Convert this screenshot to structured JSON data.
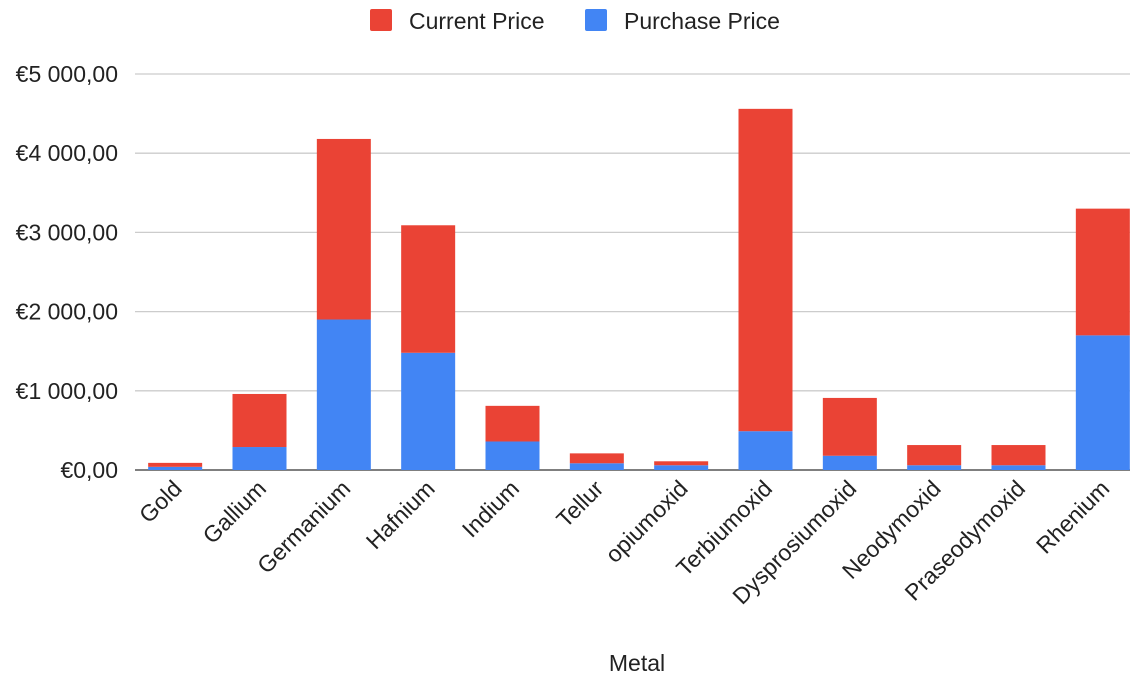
{
  "chart_data": {
    "type": "bar",
    "stacked": true,
    "categories": [
      "Gold",
      "Gallium",
      "Germanium",
      "Hafnium",
      "Indium",
      "Tellur",
      "opiumoxid",
      "Terbiumoxid",
      "Dysprosiumoxid",
      "Neodymoxid",
      "Praseodymoxid",
      "Rhenium"
    ],
    "series": [
      {
        "name": "Purchase Price",
        "color": "#4285f4",
        "values": [
          40,
          290,
          1900,
          1480,
          360,
          85,
          60,
          490,
          180,
          60,
          60,
          1700
        ]
      },
      {
        "name": "Current Price",
        "color": "#ea4335",
        "values": [
          50,
          670,
          2280,
          1610,
          450,
          125,
          50,
          4070,
          730,
          255,
          255,
          1600
        ]
      }
    ],
    "legend_order": [
      "Current Price",
      "Purchase Price"
    ],
    "legend_position": "top",
    "xlabel": "Metal",
    "ylabel": "",
    "ylim": [
      0,
      5000
    ],
    "yticks": [
      0,
      1000,
      2000,
      3000,
      4000,
      5000
    ],
    "ytick_labels": [
      "€0,00",
      "€1 000,00",
      "€2 000,00",
      "€3 000,00",
      "€4 000,00",
      "€5 000,00"
    ],
    "grid": true
  }
}
